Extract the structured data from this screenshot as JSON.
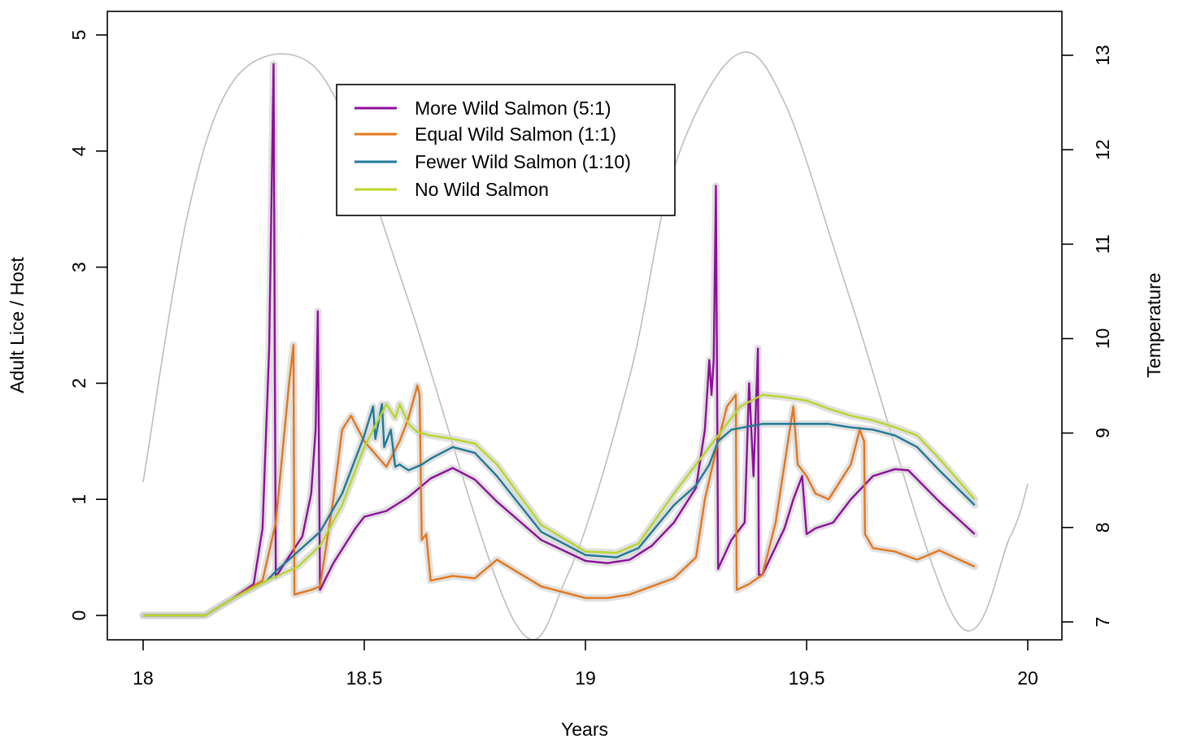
{
  "chart_data": {
    "type": "line",
    "xlabel": "Years",
    "ylabel": "Adult Lice / Host",
    "y2label": "Temperature",
    "xlim": [
      18,
      20
    ],
    "ylim": [
      0,
      5
    ],
    "y2lim": [
      7,
      13
    ],
    "x_ticks": [
      {
        "value": 18,
        "label": "18"
      },
      {
        "value": 18.5,
        "label": "18.5"
      },
      {
        "value": 19,
        "label": "19"
      },
      {
        "value": 19.5,
        "label": "19.5"
      },
      {
        "value": 20,
        "label": "20"
      }
    ],
    "y_ticks": [
      {
        "value": 0,
        "label": "0"
      },
      {
        "value": 1,
        "label": "1"
      },
      {
        "value": 2,
        "label": "2"
      },
      {
        "value": 3,
        "label": "3"
      },
      {
        "value": 4,
        "label": "4"
      },
      {
        "value": 5,
        "label": "5"
      }
    ],
    "y2_ticks": [
      {
        "value": 7,
        "label": "7"
      },
      {
        "value": 8,
        "label": "8"
      },
      {
        "value": 9,
        "label": "9"
      },
      {
        "value": 10,
        "label": "10"
      },
      {
        "value": 11,
        "label": "11"
      },
      {
        "value": 12,
        "label": "12"
      },
      {
        "value": 13,
        "label": "13"
      }
    ],
    "legend_position": "top-center",
    "grid": false,
    "temperature": {
      "color": "#bdbdbd",
      "axis": "right",
      "x": [
        18.0,
        18.1,
        18.2,
        18.34,
        18.45,
        18.6,
        18.84,
        18.96,
        19.1,
        19.2,
        19.34,
        19.45,
        19.6,
        19.84,
        19.96,
        20.0
      ],
      "y": [
        8.48,
        11.3,
        12.7,
        13.0,
        12.4,
        10.4,
        7.0,
        7.5,
        9.6,
        11.8,
        13.0,
        12.5,
        10.4,
        7.0,
        7.9,
        8.46
      ]
    },
    "series": [
      {
        "name": "More Wild Salmon (5:1)",
        "color": "#8e0f9b",
        "x": [
          18.0,
          18.14,
          18.2,
          18.25,
          18.27,
          18.285,
          18.295,
          18.298,
          18.3,
          18.32,
          18.36,
          18.38,
          18.39,
          18.395,
          18.4,
          18.43,
          18.48,
          18.5,
          18.55,
          18.6,
          18.65,
          18.7,
          18.75,
          18.8,
          18.9,
          19.0,
          19.05,
          19.1,
          19.15,
          19.2,
          19.25,
          19.27,
          19.28,
          19.285,
          19.29,
          19.295,
          19.3,
          19.302,
          19.33,
          19.36,
          19.37,
          19.38,
          19.39,
          19.392,
          19.4,
          19.45,
          19.47,
          19.49,
          19.5,
          19.52,
          19.56,
          19.6,
          19.65,
          19.7,
          19.73,
          19.8,
          19.88
        ],
        "y": [
          0.0,
          0.0,
          0.14,
          0.27,
          0.75,
          2.3,
          4.75,
          2.0,
          0.33,
          0.45,
          0.68,
          1.05,
          1.6,
          2.62,
          0.22,
          0.45,
          0.75,
          0.85,
          0.9,
          1.02,
          1.18,
          1.27,
          1.17,
          0.98,
          0.65,
          0.47,
          0.45,
          0.48,
          0.6,
          0.8,
          1.1,
          1.6,
          2.2,
          1.9,
          2.2,
          3.7,
          0.4,
          0.42,
          0.65,
          0.8,
          2.0,
          1.2,
          2.3,
          0.35,
          0.35,
          0.75,
          1.0,
          1.2,
          0.7,
          0.75,
          0.8,
          1.0,
          1.2,
          1.26,
          1.25,
          0.98,
          0.7
        ]
      },
      {
        "name": "Equal Wild Salmon (1:1)",
        "color": "#e3771b",
        "x": [
          18.0,
          18.14,
          18.2,
          18.27,
          18.3,
          18.33,
          18.34,
          18.342,
          18.38,
          18.4,
          18.43,
          18.45,
          18.47,
          18.5,
          18.55,
          18.58,
          18.6,
          18.62,
          18.625,
          18.63,
          18.64,
          18.65,
          18.7,
          18.75,
          18.8,
          18.9,
          19.0,
          19.05,
          19.1,
          19.2,
          19.25,
          19.27,
          19.3,
          19.32,
          19.34,
          19.342,
          19.37,
          19.4,
          19.43,
          19.45,
          19.47,
          19.48,
          19.5,
          19.52,
          19.55,
          19.6,
          19.62,
          19.63,
          19.632,
          19.65,
          19.7,
          19.75,
          19.8,
          19.88
        ],
        "y": [
          0.0,
          0.0,
          0.14,
          0.3,
          0.8,
          2.0,
          2.33,
          0.18,
          0.22,
          0.25,
          1.0,
          1.6,
          1.72,
          1.5,
          1.28,
          1.5,
          1.7,
          1.98,
          1.9,
          0.65,
          0.7,
          0.3,
          0.34,
          0.32,
          0.48,
          0.25,
          0.15,
          0.15,
          0.18,
          0.32,
          0.5,
          1.0,
          1.5,
          1.8,
          1.9,
          0.22,
          0.27,
          0.35,
          0.8,
          1.3,
          1.8,
          1.3,
          1.2,
          1.05,
          1.0,
          1.3,
          1.6,
          1.5,
          0.7,
          0.58,
          0.55,
          0.48,
          0.56,
          0.42
        ]
      },
      {
        "name": "Fewer Wild Salmon (1:10)",
        "color": "#1f7a96",
        "x": [
          18.0,
          18.14,
          18.2,
          18.28,
          18.3,
          18.35,
          18.4,
          18.45,
          18.5,
          18.52,
          18.525,
          18.54,
          18.545,
          18.56,
          18.57,
          18.58,
          18.6,
          18.63,
          18.65,
          18.7,
          18.75,
          18.8,
          18.9,
          19.0,
          19.07,
          19.12,
          19.2,
          19.25,
          19.28,
          19.3,
          19.33,
          19.4,
          19.5,
          19.55,
          19.6,
          19.65,
          19.7,
          19.75,
          19.8,
          19.88
        ],
        "y": [
          0.0,
          0.0,
          0.14,
          0.3,
          0.38,
          0.55,
          0.72,
          1.05,
          1.55,
          1.8,
          1.52,
          1.82,
          1.45,
          1.6,
          1.28,
          1.3,
          1.25,
          1.3,
          1.35,
          1.45,
          1.4,
          1.2,
          0.72,
          0.52,
          0.5,
          0.58,
          0.95,
          1.12,
          1.3,
          1.5,
          1.6,
          1.65,
          1.65,
          1.65,
          1.62,
          1.6,
          1.55,
          1.45,
          1.25,
          0.95
        ]
      },
      {
        "name": "No Wild Salmon",
        "color": "#b6d728",
        "x": [
          18.0,
          18.14,
          18.2,
          18.28,
          18.35,
          18.4,
          18.45,
          18.5,
          18.55,
          18.57,
          18.58,
          18.6,
          18.62,
          18.65,
          18.7,
          18.75,
          18.8,
          18.9,
          19.0,
          19.07,
          19.12,
          19.2,
          19.25,
          19.3,
          19.35,
          19.4,
          19.45,
          19.5,
          19.55,
          19.6,
          19.65,
          19.7,
          19.75,
          19.8,
          19.88
        ],
        "y": [
          0.0,
          0.0,
          0.14,
          0.3,
          0.42,
          0.6,
          0.95,
          1.45,
          1.82,
          1.7,
          1.82,
          1.65,
          1.58,
          1.55,
          1.52,
          1.48,
          1.3,
          0.78,
          0.55,
          0.54,
          0.62,
          1.05,
          1.3,
          1.55,
          1.8,
          1.9,
          1.88,
          1.85,
          1.78,
          1.72,
          1.68,
          1.62,
          1.55,
          1.35,
          1.0
        ]
      }
    ]
  }
}
